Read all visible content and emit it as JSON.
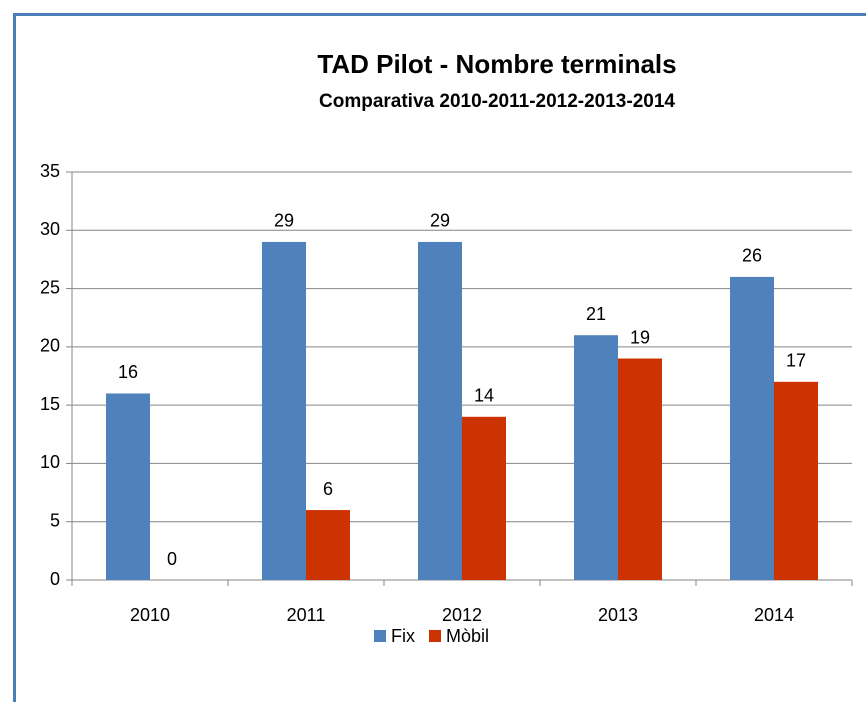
{
  "chart_data": {
    "type": "bar",
    "title": "TAD Pilot - Nombre terminals",
    "subtitle": "Comparativa 2010-2011-2012-2013-2014",
    "categories": [
      "2010",
      "2011",
      "2012",
      "2013",
      "2014"
    ],
    "series": [
      {
        "name": "Fix",
        "color": "#4f81bd",
        "values": [
          16,
          29,
          29,
          21,
          26
        ]
      },
      {
        "name": "Mòbil",
        "color": "#cc3300",
        "values": [
          0,
          6,
          14,
          19,
          17
        ]
      }
    ],
    "ylim": [
      0,
      35
    ],
    "yticks": [
      0,
      5,
      10,
      15,
      20,
      25,
      30,
      35
    ],
    "grid": true,
    "legend": "bottom"
  }
}
